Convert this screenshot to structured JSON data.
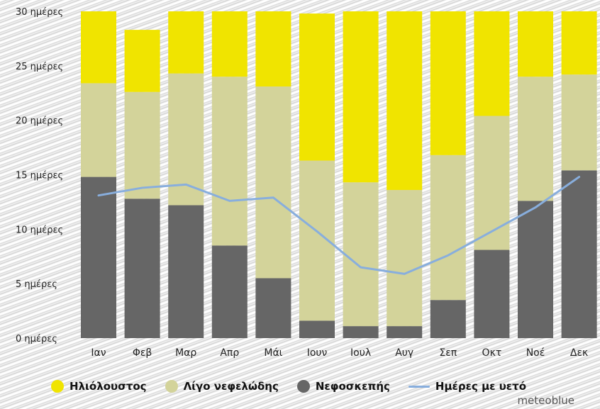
{
  "chart_data": {
    "type": "bar",
    "stacked": true,
    "categories": [
      "Ιαν",
      "Φεβ",
      "Μαρ",
      "Απρ",
      "Μάι",
      "Ιουν",
      "Ιουλ",
      "Αυγ",
      "Σεπ",
      "Οκτ",
      "Νοέ",
      "Δεκ"
    ],
    "yticks": [
      "0 ημέρες",
      "5 ημέρες",
      "10 ημέρες",
      "15 ημέρες",
      "20 ημέρες",
      "25 ημέρες",
      "30 ημέρες"
    ],
    "ylim": [
      0,
      30
    ],
    "grid": false,
    "series": [
      {
        "name": "Νεφοσκεπής",
        "color": "#666666",
        "values": [
          14.8,
          12.8,
          12.2,
          8.5,
          5.5,
          1.6,
          1.1,
          1.1,
          3.5,
          8.1,
          12.6,
          15.4
        ]
      },
      {
        "name": "Λίγο νεφελώδης",
        "color": "#d3d39a",
        "values": [
          8.6,
          9.8,
          12.1,
          15.5,
          17.6,
          14.7,
          13.2,
          12.5,
          13.3,
          12.3,
          11.4,
          8.8
        ]
      },
      {
        "name": "Ηλιόλουστος",
        "color": "#f0e400",
        "values": [
          6.6,
          5.7,
          5.7,
          6.0,
          6.9,
          13.5,
          15.7,
          16.4,
          13.2,
          9.6,
          6.0,
          5.8
        ]
      }
    ],
    "line": {
      "name": "Ημέρες με υετό",
      "color": "#88aedd",
      "values": [
        13.1,
        13.8,
        14.1,
        12.6,
        12.9,
        9.8,
        6.5,
        5.9,
        7.6,
        9.8,
        12.0,
        14.8
      ]
    }
  },
  "legend": {
    "items": [
      {
        "label": "Ηλιόλουστος",
        "color": "#f0e400",
        "kind": "dot"
      },
      {
        "label": "Λίγο νεφελώδης",
        "color": "#d3d39a",
        "kind": "dot"
      },
      {
        "label": "Νεφοσκεπής",
        "color": "#666666",
        "kind": "dot"
      },
      {
        "label": "Ημέρες με υετό",
        "color": "#88aedd",
        "kind": "line"
      }
    ]
  },
  "watermark": "meteoblue"
}
